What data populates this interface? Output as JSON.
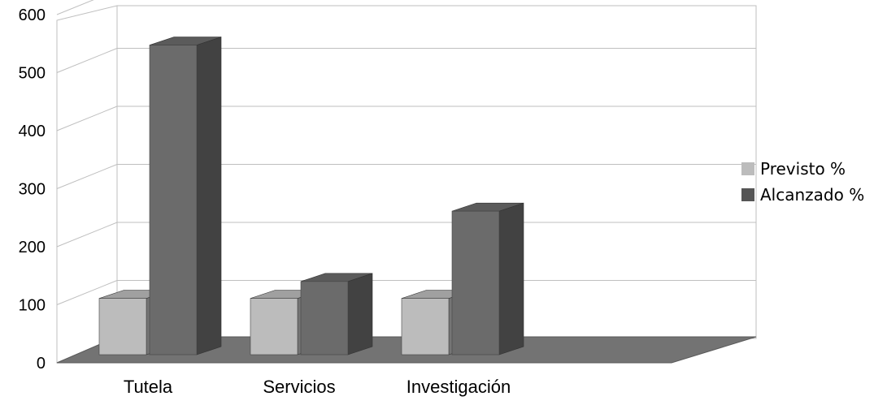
{
  "chart_data": {
    "type": "bar",
    "title": "",
    "xlabel": "",
    "ylabel": "",
    "categories": [
      "Tutela",
      "Servicios",
      "Investigación"
    ],
    "series": [
      {
        "name": "Previsto %",
        "values": [
          100,
          100,
          100
        ],
        "color": "#bcbcbc"
      },
      {
        "name": "Alcanzado %",
        "values": [
          550,
          130,
          255
        ],
        "color": "#6b6b6b"
      }
    ],
    "y_ticks": [
      "0",
      "100",
      "200",
      "300",
      "400",
      "500",
      "600"
    ],
    "ylim": [
      0,
      600
    ],
    "grid": true,
    "legend_position": "right",
    "three_d": true
  }
}
